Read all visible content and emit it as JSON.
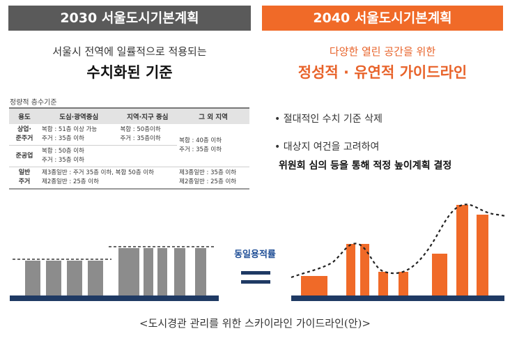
{
  "left_panel": {
    "header": "2030 서울도시기본계획",
    "subtitle": "서울시 전역에 일률적으로 적용되는",
    "main_title": "수치화된 기준",
    "table_caption": "정량적 층수기준",
    "table": {
      "headers": [
        "용도",
        "도심·광역중심",
        "지역·지구 중심",
        "그 외 지역"
      ],
      "rows": [
        {
          "use": "상업·\n준주거",
          "c1": "복합 : 51층 이상 가능\n주거 : 35층 이하",
          "c2": "복합 : 50층이하\n주거 : 35층이하",
          "c3": "복합 : 40층 이하\n주거 : 35층 이하"
        },
        {
          "use": "준공업",
          "c1": "복합 : 50층 이하\n주거 : 35층 이하"
        },
        {
          "use": "일반\n주거",
          "c1": "제3종일반 : 주거 35층 이하, 복합 50층 이하\n제2종일반 : 25층 이하",
          "c3": "제3종일반 : 35층 이하\n제2종일반 : 25층 이하"
        }
      ]
    }
  },
  "right_panel": {
    "header": "2040 서울도시기본계획",
    "subtitle": "다양한 열린 공간을 위한",
    "main_title": "정성적 · 유연적 가이드라인",
    "bullets": [
      "• 절대적인 수치 기준 삭제",
      "• 대상지 여건을 고려하여",
      "위원회 심의 등을 통해 적정 높이계획 결정"
    ]
  },
  "equal_label": "동일용적률",
  "caption": "<도시경관 관리를 위한 스카이라인 가이드라인(안)>",
  "colors": {
    "gray_header": "#5a5a5a",
    "orange": "#f06a28",
    "gray_bar": "#8c8c8c",
    "ground": "#1f3a64",
    "label_blue": "#1f4e96"
  }
}
